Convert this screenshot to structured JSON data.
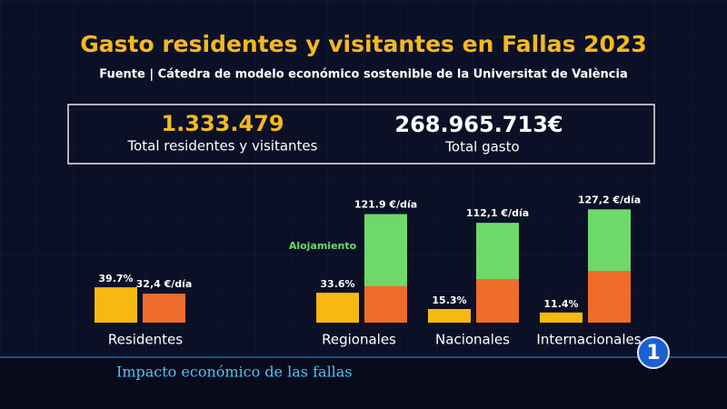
{
  "header": {
    "title": "Gasto residentes y visitantes en Fallas 2023",
    "source": "Fuente | Cátedra de modelo económico sostenible de la Universitat de València"
  },
  "summary": [
    {
      "value": "1.333.479",
      "label": "Total residentes y visitantes"
    },
    {
      "value": "268.965.713€",
      "label": "Total gasto"
    }
  ],
  "chart_data": {
    "type": "bar",
    "categories": [
      "Residentes",
      "Regionales",
      "Nacionales",
      "Internacionales"
    ],
    "series": [
      {
        "color": "#f6b90f",
        "values": [
          39.7,
          33.6,
          15.3,
          11.4
        ],
        "value_labels": [
          "39.7%",
          "33.6%",
          "15.3%",
          "11.4%"
        ]
      },
      {
        "color": "#ef6c2b",
        "values": [
          32.4,
          41,
          49,
          58
        ]
      }
    ],
    "totals": [
      32.4,
      121.9,
      112.1,
      127.2
    ],
    "total_labels": [
      "32,4 €/día",
      "121.9 €/día",
      "112,1 €/día",
      "127,2 €/día"
    ],
    "total_color": "#6fd86b",
    "annotation": "Alojamiento"
  },
  "banner": {
    "caption": "Impacto económico de las fallas",
    "logo": "1"
  }
}
